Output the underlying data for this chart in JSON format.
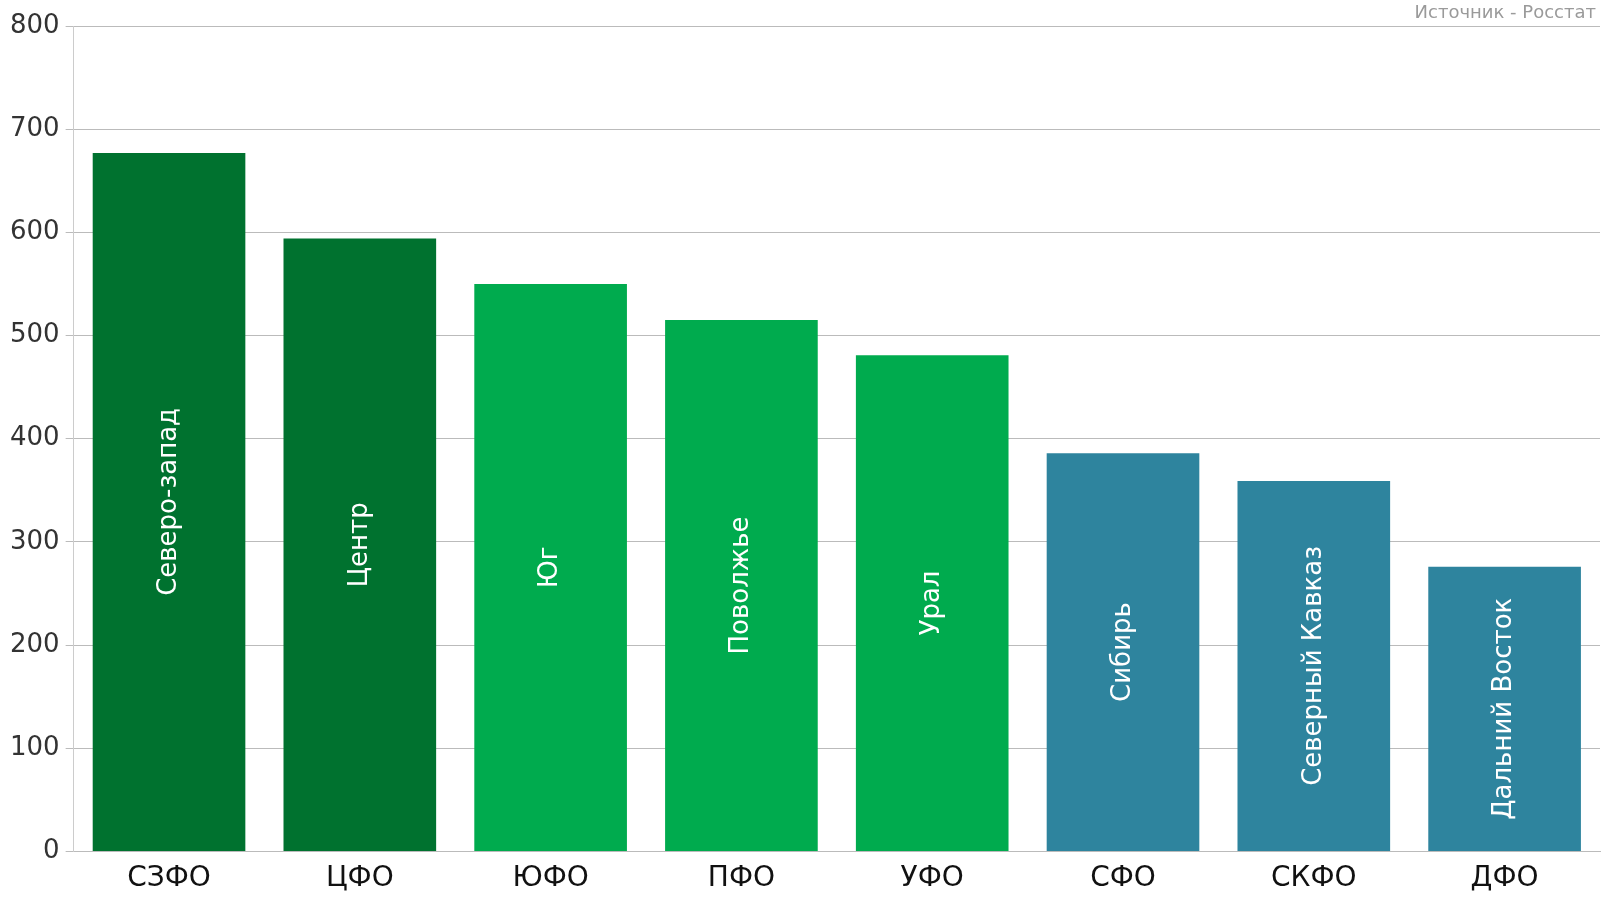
{
  "chart_data": {
    "type": "bar",
    "categories": [
      "СЗФО",
      "ЦФО",
      "ЮФО",
      "ПФО",
      "УФО",
      "СФО",
      "СКФО",
      "ДФО"
    ],
    "values": [
      677,
      594,
      550,
      515,
      481,
      386,
      359,
      276
    ],
    "colors": [
      "#00722f",
      "#00722f",
      "#00ab4e",
      "#00ab4e",
      "#00ab4e",
      "#2e849e",
      "#2e849e",
      "#2e849e"
    ],
    "ylim": [
      0,
      800
    ],
    "yticks": [
      0,
      100,
      200,
      300,
      400,
      500,
      600,
      700,
      800
    ],
    "grid": "y",
    "legend": false,
    "annotations": [
      "Северо-запад",
      "Центр",
      "Юг",
      "Поволжье",
      "Урал",
      "Сибирь",
      "Северный Кавказ",
      "Дальний Восток",
      "Источник - Росстат"
    ]
  }
}
